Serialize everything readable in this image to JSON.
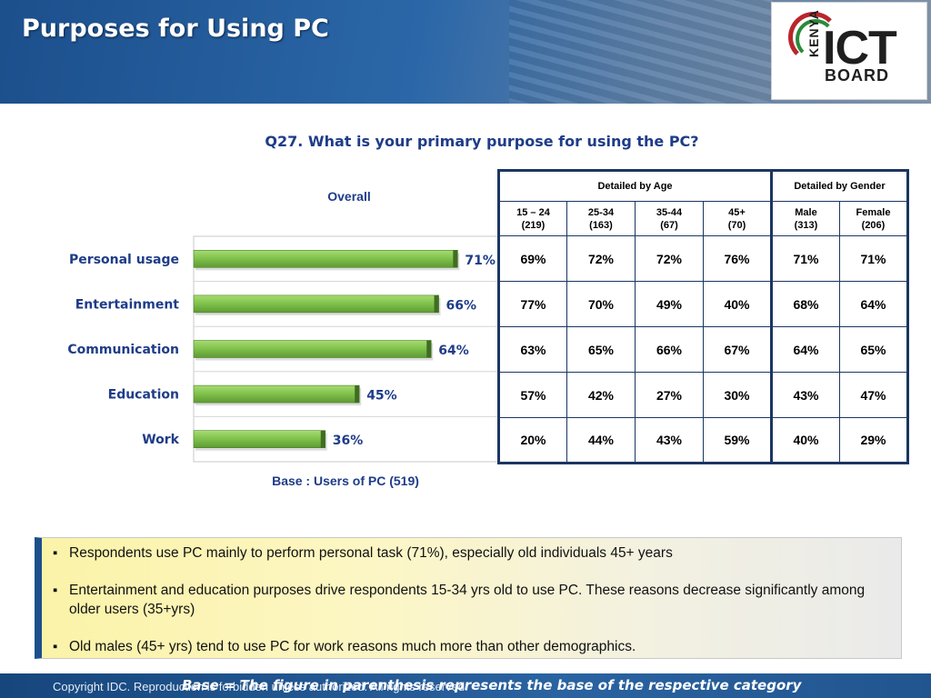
{
  "header": {
    "title": "Purposes for Using PC",
    "logo": {
      "kenya": "KENYA",
      "ict": "ICT",
      "board": "BOARD"
    }
  },
  "question": "Q27. What is your primary purpose for using the PC?",
  "chart_data": {
    "type": "bar",
    "orientation": "horizontal",
    "title": "Overall",
    "categories": [
      "Personal usage",
      "Entertainment",
      "Communication",
      "Education",
      "Work"
    ],
    "values": [
      71,
      66,
      64,
      45,
      36
    ],
    "value_labels": [
      "71%",
      "66%",
      "64%",
      "45%",
      "36%"
    ],
    "xlim": [
      0,
      100
    ],
    "unit": "%",
    "bar_color": "#7fc04b",
    "label_color": "#1f3c88",
    "grid": false,
    "base_note": "Base : Users of PC (519)"
  },
  "table": {
    "group_headers": [
      "Detailed by Age",
      "Detailed by Gender"
    ],
    "columns": [
      {
        "label": "15 – 24",
        "base": "(219)"
      },
      {
        "label": "25-34",
        "base": "(163)"
      },
      {
        "label": "35-44",
        "base": "(67)"
      },
      {
        "label": "45+",
        "base": "(70)"
      },
      {
        "label": "Male",
        "base": "(313)"
      },
      {
        "label": "Female",
        "base": "(206)"
      }
    ],
    "rows": [
      [
        "69%",
        "72%",
        "72%",
        "76%",
        "71%",
        "71%"
      ],
      [
        "77%",
        "70%",
        "49%",
        "40%",
        "68%",
        "64%"
      ],
      [
        "63%",
        "65%",
        "66%",
        "67%",
        "64%",
        "65%"
      ],
      [
        "57%",
        "42%",
        "27%",
        "30%",
        "43%",
        "47%"
      ],
      [
        "20%",
        "44%",
        "43%",
        "59%",
        "40%",
        "29%"
      ]
    ]
  },
  "notes": [
    "Respondents use PC mainly to perform personal task (71%), especially old individuals 45+ years",
    "Entertainment and education purposes drive respondents 15-34 yrs old to use PC. These reasons decrease significantly among older users (35+yrs)",
    "Old males (45+ yrs) tend to use PC for work reasons much more than other demographics."
  ],
  "footer": {
    "copyright": "Copyright IDC. Reproduction is forbidden unless authorized. All rights reserved.",
    "note": "Base = The figure in parenthesis represents the base of the respective category"
  },
  "colors": {
    "brand_blue": "#1c4f8c",
    "text_blue": "#1f3c88",
    "table_border": "#1b3661"
  }
}
